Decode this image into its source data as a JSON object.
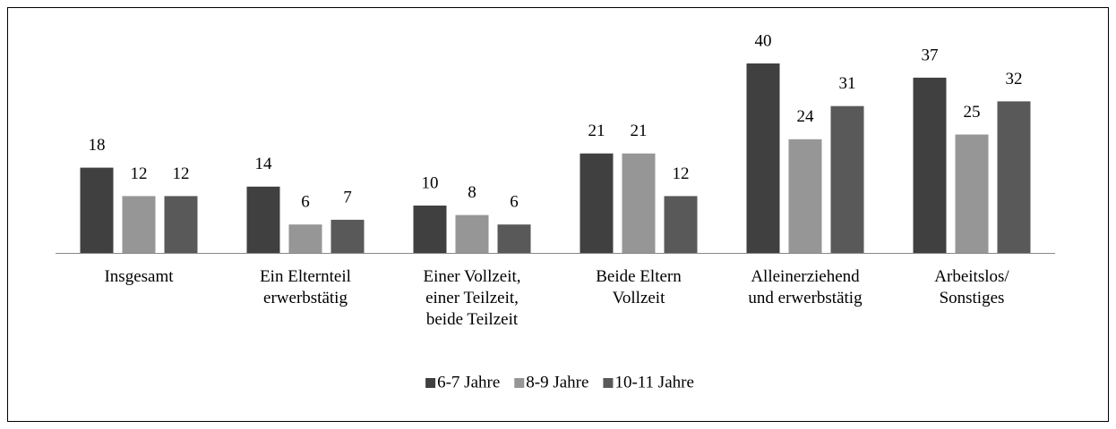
{
  "chart_data": {
    "type": "bar",
    "categories": [
      "Insgesamt",
      "Ein Elternteil\nerwerbstätig",
      "Einer Vollzeit,\neiner Teilzeit,\nbeide Teilzeit",
      "Beide Eltern\nVollzeit",
      "Alleinerziehend\nund erwerbstätig",
      "Arbeitslos/\nSonstiges"
    ],
    "series": [
      {
        "name": "6-7 Jahre",
        "color": "#404040",
        "values": [
          18,
          14,
          10,
          21,
          40,
          37
        ]
      },
      {
        "name": "8-9 Jahre",
        "color": "#969696",
        "values": [
          12,
          6,
          8,
          21,
          24,
          25
        ]
      },
      {
        "name": "10-11 Jahre",
        "color": "#595959",
        "values": [
          12,
          7,
          6,
          12,
          31,
          32
        ]
      }
    ],
    "legend": "bottom"
  }
}
